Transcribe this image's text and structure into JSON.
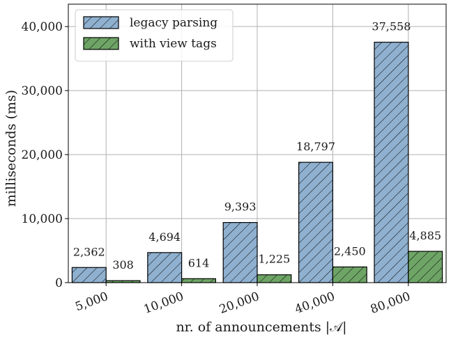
{
  "chart_data": {
    "type": "bar",
    "categories": [
      "5,000",
      "10,000",
      "20,000",
      "40,000",
      "80,000"
    ],
    "series": [
      {
        "name": "legacy parsing",
        "values": [
          2362,
          4694,
          9393,
          18797,
          37558
        ],
        "labels": [
          "2,362",
          "4,694",
          "9,393",
          "18,797",
          "37,558"
        ],
        "color": "#8fb0cf"
      },
      {
        "name": "with view tags",
        "values": [
          308,
          614,
          1225,
          2450,
          4885
        ],
        "labels": [
          "308",
          "614",
          "1,225",
          "2,450",
          "4,885"
        ],
        "color": "#6ea566"
      }
    ],
    "xlabel": "nr. of announcements |𝒜|",
    "ylabel": "milliseconds (ms)",
    "ylim": [
      0,
      43500
    ],
    "yticks": [
      0,
      10000,
      20000,
      30000,
      40000
    ],
    "ytick_labels": [
      "0",
      "10,000",
      "20,000",
      "30,000",
      "40,000"
    ],
    "grid": true,
    "legend": "top-left",
    "hatch": "diagonal"
  }
}
